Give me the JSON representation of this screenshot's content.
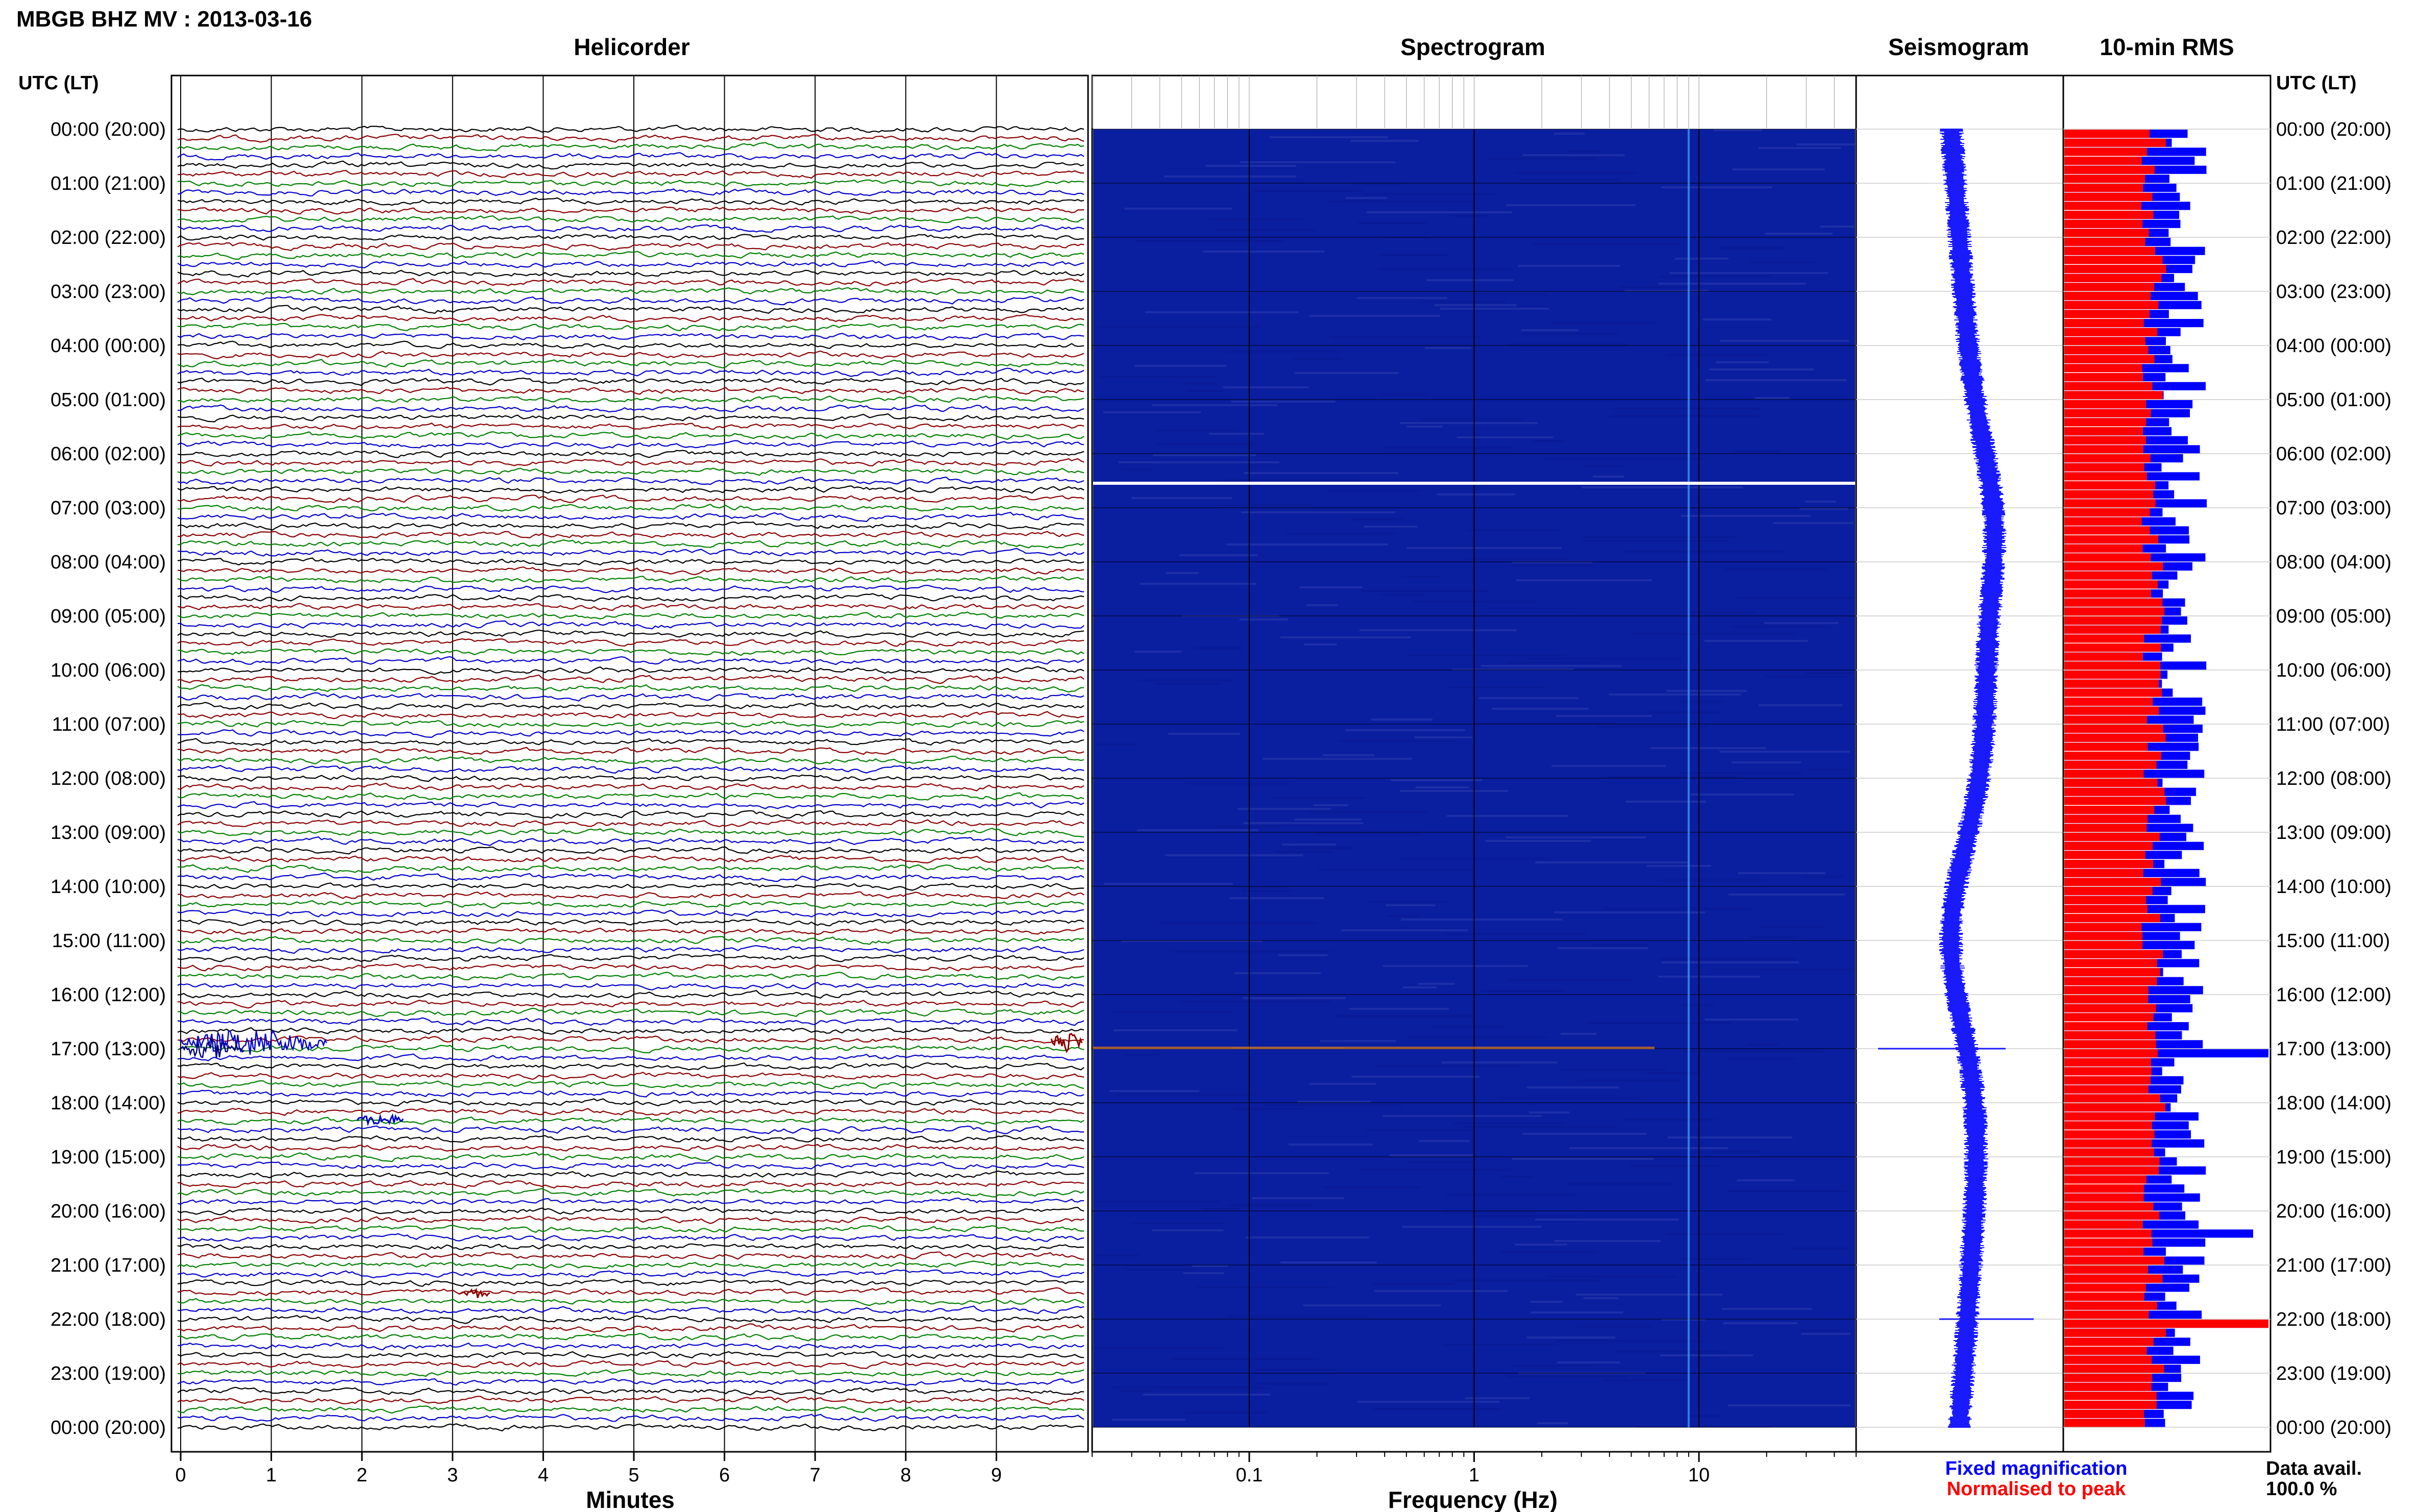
{
  "header": {
    "title": "MBGB BHZ MV : 2013-03-16",
    "utc_label": "UTC (LT)"
  },
  "panels": {
    "helicorder": "Helicorder",
    "spectrogram": "Spectrogram",
    "seismogram": "Seismogram",
    "rms": "10-min RMS"
  },
  "axes": {
    "minutes_label": "Minutes",
    "frequency_label": "Frequency (Hz)"
  },
  "legend": {
    "fixed": "Fixed magnification",
    "normalised": "Normalised to peak",
    "fixed_color": "#0000ff",
    "normalised_color": "#ff0000"
  },
  "data_avail": {
    "label": "Data avail.",
    "value": "100.0 %"
  },
  "colors": {
    "trace_cycle": [
      "#000000",
      "#8b0000",
      "#008000",
      "#0000cd"
    ],
    "rms_fixed": "#0000ff",
    "rms_normalised": "#ff0000",
    "seismogram": "#1a1aff"
  },
  "chart_data": [
    {
      "type": "line",
      "name": "helicorder",
      "xlabel": "Minutes",
      "x_ticks": [
        "0",
        "1",
        "2",
        "3",
        "4",
        "5",
        "6",
        "7",
        "8",
        "9"
      ],
      "xlim": [
        0,
        10
      ],
      "hour_labels": [
        "00:00 (20:00)",
        "01:00 (21:00)",
        "02:00 (22:00)",
        "03:00 (23:00)",
        "04:00 (00:00)",
        "05:00 (01:00)",
        "06:00 (02:00)",
        "07:00 (03:00)",
        "08:00 (04:00)",
        "09:00 (05:00)",
        "10:00 (06:00)",
        "11:00 (07:00)",
        "12:00 (08:00)",
        "13:00 (09:00)",
        "14:00 (10:00)",
        "15:00 (11:00)",
        "16:00 (12:00)",
        "17:00 (13:00)",
        "18:00 (14:00)",
        "19:00 (15:00)",
        "20:00 (16:00)",
        "21:00 (17:00)",
        "22:00 (18:00)",
        "23:00 (19:00)",
        "00:00 (20:00)"
      ],
      "traces_per_hour": 6
    },
    {
      "type": "heatmap",
      "name": "spectrogram",
      "xlabel": "Frequency (Hz)",
      "x_scale": "log",
      "x_ticks": [
        "0.1",
        "1",
        "10"
      ],
      "xlim": [
        0.02,
        50
      ]
    },
    {
      "type": "line",
      "name": "seismogram"
    },
    {
      "type": "bar",
      "name": "10-min RMS",
      "series": [
        {
          "name": "Fixed magnification",
          "color": "#0000ff"
        },
        {
          "name": "Normalised to peak",
          "color": "#ff0000"
        }
      ],
      "bars": 144
    }
  ]
}
